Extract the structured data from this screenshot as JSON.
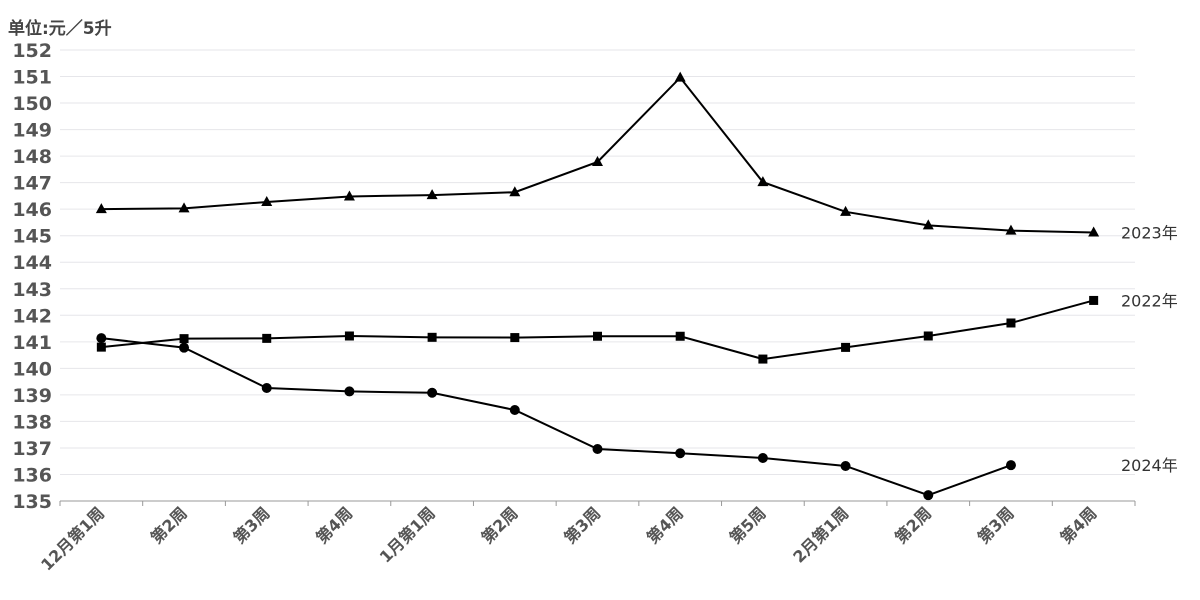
{
  "chart_data": {
    "type": "line",
    "unit_label": "单位:元／5升",
    "categories": [
      "12月第1周",
      "第2周",
      "第3周",
      "第4周",
      "1月第1周",
      "第2周",
      "第3周",
      "第4周",
      "第5周",
      "2月第1周",
      "第2周",
      "第3周",
      "第4周"
    ],
    "ylim": [
      135,
      152
    ],
    "yticks": [
      135,
      136,
      137,
      138,
      139,
      140,
      141,
      142,
      143,
      144,
      145,
      146,
      147,
      148,
      149,
      150,
      151,
      152
    ],
    "grid": true,
    "series": [
      {
        "name": "2023年",
        "marker": "triangle",
        "values": [
          146.0,
          146.03,
          146.27,
          146.48,
          146.53,
          146.64,
          147.78,
          150.96,
          147.02,
          145.9,
          145.39,
          145.19,
          145.12
        ]
      },
      {
        "name": "2022年",
        "marker": "square",
        "values": [
          140.8,
          141.12,
          141.13,
          141.22,
          141.17,
          141.16,
          141.21,
          141.21,
          140.35,
          140.79,
          141.22,
          141.71,
          142.56
        ]
      },
      {
        "name": "2024年",
        "marker": "circle",
        "values": [
          141.14,
          140.78,
          139.26,
          139.13,
          139.08,
          138.43,
          136.96,
          136.8,
          136.62,
          136.32,
          135.22,
          136.35,
          null
        ]
      }
    ]
  }
}
